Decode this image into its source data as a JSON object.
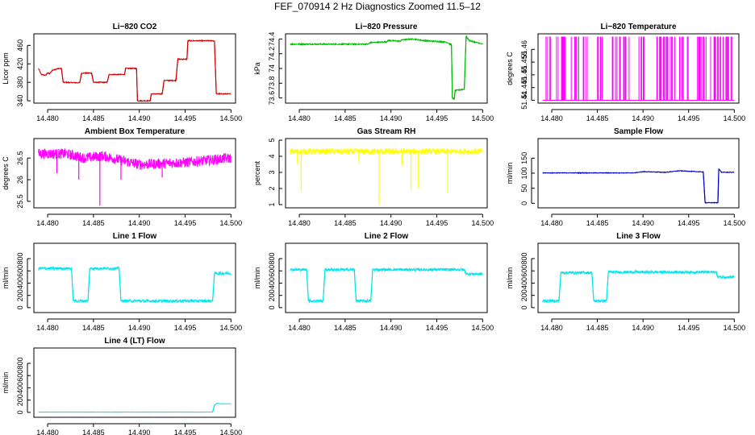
{
  "figure_title": "FEF_070914  2 Hz Diagnostics Zoomed 11.5–12",
  "chart_data": [
    {
      "type": "line",
      "title": "Li−820 CO2",
      "ylabel": "Licor ppm",
      "color": "#cc0000",
      "xlim": [
        14.4785,
        14.5005
      ],
      "xticks": [
        "14.480",
        "14.485",
        "14.490",
        "14.495",
        "14.500"
      ],
      "ylim": [
        335,
        485
      ],
      "yticks": [
        340,
        380,
        420,
        460
      ],
      "series": [
        {
          "noise": 1.0,
          "points": [
            [
              14.479,
              410
            ],
            [
              14.4793,
              397
            ],
            [
              14.4798,
              395
            ],
            [
              14.48,
              401
            ],
            [
              14.4802,
              398
            ],
            [
              14.4805,
              406
            ],
            [
              14.481,
              409
            ],
            [
              14.4812,
              410
            ],
            [
              14.4815,
              410
            ],
            [
              14.4817,
              380
            ],
            [
              14.4835,
              379
            ],
            [
              14.4837,
              400
            ],
            [
              14.4848,
              400
            ],
            [
              14.485,
              380
            ],
            [
              14.4865,
              380
            ],
            [
              14.4867,
              397
            ],
            [
              14.4884,
              397
            ],
            [
              14.4885,
              410
            ],
            [
              14.4897,
              410
            ],
            [
              14.4898,
              340
            ],
            [
              14.4912,
              340
            ],
            [
              14.4913,
              355
            ],
            [
              14.4925,
              355
            ],
            [
              14.4927,
              384
            ],
            [
              14.494,
              384
            ],
            [
              14.4942,
              430
            ],
            [
              14.4952,
              430
            ],
            [
              14.4953,
              470
            ],
            [
              14.4982,
              470
            ],
            [
              14.4984,
              355
            ],
            [
              14.5,
              355
            ]
          ]
        }
      ]
    },
    {
      "type": "line",
      "title": "Li−820 Pressure",
      "ylabel": "kPa",
      "color": "#00bb00",
      "xlim": [
        14.4785,
        14.5005
      ],
      "xticks": [
        "14.480",
        "14.485",
        "14.490",
        "14.495",
        "14.500"
      ],
      "ylim": [
        73.53,
        74.47
      ],
      "yticks": [
        73.6,
        73.8,
        74.0,
        74.2,
        74.4
      ],
      "series": [
        {
          "noise": 0.008,
          "points": [
            [
              14.479,
              74.33
            ],
            [
              14.4875,
              74.33
            ],
            [
              14.4877,
              74.35
            ],
            [
              14.4895,
              74.36
            ],
            [
              14.4897,
              74.38
            ],
            [
              14.491,
              74.37
            ],
            [
              14.4912,
              74.39
            ],
            [
              14.4925,
              74.4
            ],
            [
              14.4935,
              74.38
            ],
            [
              14.4945,
              74.37
            ],
            [
              14.496,
              74.36
            ],
            [
              14.4966,
              74.32
            ],
            [
              14.4967,
              73.6
            ],
            [
              14.4969,
              73.58
            ],
            [
              14.497,
              73.7
            ],
            [
              14.498,
              73.72
            ],
            [
              14.4982,
              74.44
            ],
            [
              14.4985,
              74.38
            ],
            [
              14.5,
              74.33
            ]
          ]
        }
      ]
    },
    {
      "type": "line",
      "title": "Li−820 Temperature",
      "ylabel": "degrees C",
      "color": "#ff00ff",
      "xlim": [
        14.4785,
        14.5005
      ],
      "xticks": [
        "14.480",
        "14.485",
        "14.490",
        "14.495",
        "14.500"
      ],
      "ylim": [
        51.4389,
        51.4661
      ],
      "yticks": [
        51.44,
        51.445,
        51.45,
        51.455,
        51.46
      ],
      "series": [
        {
          "pattern": "spikes",
          "low": 51.44,
          "high": 51.465,
          "points": [
            [
              14.479,
              51.44
            ],
            [
              14.5,
              51.44
            ]
          ]
        }
      ]
    },
    {
      "type": "line",
      "title": "Ambient Box Temperature",
      "ylabel": "degrees C",
      "color": "#ff00ff",
      "xlim": [
        14.4785,
        14.5005
      ],
      "xticks": [
        "14.480",
        "14.485",
        "14.490",
        "14.495",
        "14.500"
      ],
      "ylim": [
        25.35,
        26.95
      ],
      "yticks": [
        25.5,
        26.0,
        26.5
      ],
      "series": [
        {
          "noise": 0.12,
          "points": [
            [
              14.479,
              26.6
            ],
            [
              14.482,
              26.6
            ],
            [
              14.484,
              26.5
            ],
            [
              14.486,
              26.55
            ],
            [
              14.488,
              26.45
            ],
            [
              14.49,
              26.35
            ],
            [
              14.495,
              26.4
            ],
            [
              14.5,
              26.5
            ]
          ]
        }
      ],
      "spikes": [
        [
          14.4857,
          25.4
        ],
        [
          14.4834,
          26.0
        ],
        [
          14.488,
          26.0
        ],
        [
          14.4925,
          26.05
        ],
        [
          14.481,
          26.15
        ]
      ]
    },
    {
      "type": "line",
      "title": "Gas Stream RH",
      "ylabel": "percent",
      "color": "#ffff00",
      "xlim": [
        14.4785,
        14.5005
      ],
      "xticks": [
        "14.480",
        "14.485",
        "14.490",
        "14.495",
        "14.500"
      ],
      "ylim": [
        0.8,
        5.1
      ],
      "yticks": [
        1,
        2,
        3,
        4,
        5
      ],
      "series": [
        {
          "noise": 0.18,
          "points": [
            [
              14.479,
              4.3
            ],
            [
              14.5,
              4.3
            ]
          ]
        }
      ],
      "spikes": [
        [
          14.4802,
          1.8
        ],
        [
          14.4887,
          1.0
        ],
        [
          14.4922,
          1.9
        ],
        [
          14.493,
          2.0
        ],
        [
          14.4962,
          1.7
        ],
        [
          14.4865,
          3.6
        ],
        [
          14.4798,
          3.5
        ],
        [
          14.4912,
          3.4
        ]
      ]
    },
    {
      "type": "line",
      "title": "Sample Flow",
      "ylabel": "ml/min",
      "color": "#0000cc",
      "xlim": [
        14.4785,
        14.5005
      ],
      "xticks": [
        "14.480",
        "14.485",
        "14.490",
        "14.495",
        "14.500"
      ],
      "ylim": [
        -15,
        215
      ],
      "yticks": [
        0,
        50,
        100,
        150
      ],
      "series": [
        {
          "noise": 1.0,
          "points": [
            [
              14.479,
              101
            ],
            [
              14.489,
              101
            ],
            [
              14.49,
              105
            ],
            [
              14.4925,
              103
            ],
            [
              14.494,
              108
            ],
            [
              14.4966,
              104
            ],
            [
              14.4968,
              2
            ],
            [
              14.4982,
              2
            ],
            [
              14.4983,
              115
            ],
            [
              14.4986,
              103
            ],
            [
              14.5,
              103
            ]
          ]
        }
      ]
    },
    {
      "type": "line",
      "title": "Line 1 Flow",
      "ylabel": "ml/min",
      "color": "#00e5ee",
      "xlim": [
        14.4785,
        14.5005
      ],
      "xticks": [
        "14.480",
        "14.485",
        "14.490",
        "14.495",
        "14.500"
      ],
      "ylim": [
        -80,
        1050
      ],
      "yticks": [
        0,
        200,
        400,
        600,
        800
      ],
      "series": [
        {
          "noise": 22,
          "points": [
            [
              14.479,
              640
            ],
            [
              14.4826,
              640
            ],
            [
              14.4828,
              110
            ],
            [
              14.4844,
              110
            ],
            [
              14.4846,
              640
            ],
            [
              14.4878,
              640
            ],
            [
              14.488,
              110
            ],
            [
              14.498,
              110
            ],
            [
              14.4982,
              560
            ],
            [
              14.5,
              560
            ]
          ]
        }
      ]
    },
    {
      "type": "line",
      "title": "Line 2 Flow",
      "ylabel": "ml/min",
      "color": "#00e5ee",
      "xlim": [
        14.4785,
        14.5005
      ],
      "xticks": [
        "14.480",
        "14.485",
        "14.490",
        "14.495",
        "14.500"
      ],
      "ylim": [
        -80,
        1050
      ],
      "yticks": [
        0,
        200,
        400,
        600,
        800
      ],
      "series": [
        {
          "noise": 22,
          "points": [
            [
              14.479,
              620
            ],
            [
              14.4808,
              620
            ],
            [
              14.481,
              110
            ],
            [
              14.4826,
              110
            ],
            [
              14.4828,
              620
            ],
            [
              14.486,
              620
            ],
            [
              14.4862,
              110
            ],
            [
              14.4878,
              110
            ],
            [
              14.488,
              620
            ],
            [
              14.498,
              620
            ],
            [
              14.4982,
              550
            ],
            [
              14.5,
              550
            ]
          ]
        }
      ]
    },
    {
      "type": "line",
      "title": "Line 3 Flow",
      "ylabel": "ml/min",
      "color": "#00e5ee",
      "xlim": [
        14.4785,
        14.5005
      ],
      "xticks": [
        "14.480",
        "14.485",
        "14.490",
        "14.495",
        "14.500"
      ],
      "ylim": [
        -80,
        1050
      ],
      "yticks": [
        0,
        200,
        400,
        600,
        800
      ],
      "series": [
        {
          "noise": 22,
          "points": [
            [
              14.479,
              110
            ],
            [
              14.4808,
              110
            ],
            [
              14.481,
              570
            ],
            [
              14.4844,
              570
            ],
            [
              14.4846,
              110
            ],
            [
              14.486,
              110
            ],
            [
              14.4862,
              580
            ],
            [
              14.498,
              580
            ],
            [
              14.4982,
              500
            ],
            [
              14.5,
              500
            ]
          ]
        }
      ]
    },
    {
      "type": "line",
      "title": "Line 4 (LT) Flow",
      "ylabel": "ml/min",
      "color": "#00e5ee",
      "xlim": [
        14.4785,
        14.5005
      ],
      "xticks": [
        "14.480",
        "14.485",
        "14.490",
        "14.495",
        "14.500"
      ],
      "ylim": [
        -80,
        1050
      ],
      "yticks": [
        0,
        200,
        400,
        600,
        800
      ],
      "series": [
        {
          "noise": 2,
          "points": [
            [
              14.479,
              5
            ],
            [
              14.498,
              5
            ],
            [
              14.4982,
              120
            ],
            [
              14.4985,
              150
            ],
            [
              14.499,
              140
            ],
            [
              14.5,
              140
            ]
          ]
        }
      ]
    }
  ]
}
